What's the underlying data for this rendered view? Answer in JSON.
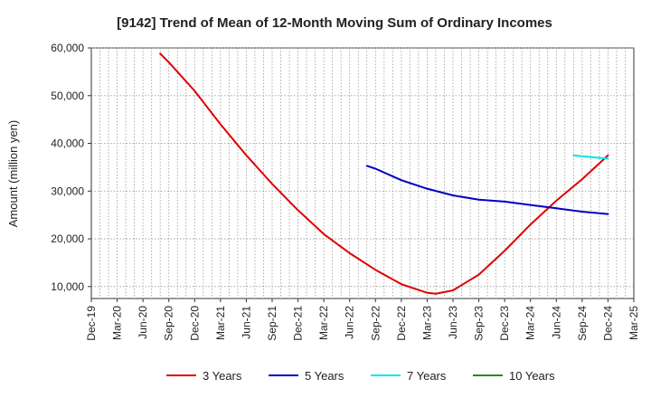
{
  "chart_data": {
    "type": "line",
    "title": "[9142]  Trend of Mean of 12-Month Moving Sum of Ordinary Incomes",
    "xlabel": "",
    "ylabel": "Amount (million yen)",
    "ylim": [
      7500,
      60000
    ],
    "grid": true,
    "yticks": [
      10000,
      20000,
      30000,
      40000,
      50000,
      60000
    ],
    "ytick_labels": [
      "10,000",
      "20,000",
      "30,000",
      "40,000",
      "50,000",
      "60,000"
    ],
    "categories": [
      "Dec-19",
      "Mar-20",
      "Jun-20",
      "Sep-20",
      "Dec-20",
      "Mar-21",
      "Jun-21",
      "Sep-21",
      "Dec-21",
      "Mar-22",
      "Jun-22",
      "Sep-22",
      "Dec-22",
      "Mar-23",
      "Jun-23",
      "Sep-23",
      "Dec-23",
      "Mar-24",
      "Jun-24",
      "Sep-24",
      "Dec-24",
      "Mar-25"
    ],
    "legend_position": "bottom",
    "series": [
      {
        "name": "3 Years",
        "color": "#e00000",
        "points": [
          {
            "x": "Aug-20",
            "y": 58800
          },
          {
            "x": "Sep-20",
            "y": 57000
          },
          {
            "x": "Dec-20",
            "y": 51000
          },
          {
            "x": "Mar-21",
            "y": 44000
          },
          {
            "x": "Jun-21",
            "y": 37500
          },
          {
            "x": "Sep-21",
            "y": 31500
          },
          {
            "x": "Dec-21",
            "y": 26000
          },
          {
            "x": "Mar-22",
            "y": 21000
          },
          {
            "x": "Jun-22",
            "y": 17000
          },
          {
            "x": "Sep-22",
            "y": 13500
          },
          {
            "x": "Dec-22",
            "y": 10500
          },
          {
            "x": "Mar-23",
            "y": 8700
          },
          {
            "x": "Apr-23",
            "y": 8500
          },
          {
            "x": "Jun-23",
            "y": 9200
          },
          {
            "x": "Sep-23",
            "y": 12500
          },
          {
            "x": "Dec-23",
            "y": 17500
          },
          {
            "x": "Mar-24",
            "y": 23000
          },
          {
            "x": "Jun-24",
            "y": 28000
          },
          {
            "x": "Sep-24",
            "y": 32500
          },
          {
            "x": "Dec-24",
            "y": 37500
          }
        ]
      },
      {
        "name": "5 Years",
        "color": "#0000c8",
        "points": [
          {
            "x": "Aug-22",
            "y": 35300
          },
          {
            "x": "Sep-22",
            "y": 34700
          },
          {
            "x": "Dec-22",
            "y": 32300
          },
          {
            "x": "Mar-23",
            "y": 30500
          },
          {
            "x": "Jun-23",
            "y": 29100
          },
          {
            "x": "Sep-23",
            "y": 28200
          },
          {
            "x": "Dec-23",
            "y": 27800
          },
          {
            "x": "Mar-24",
            "y": 27100
          },
          {
            "x": "Jun-24",
            "y": 26400
          },
          {
            "x": "Sep-24",
            "y": 25700
          },
          {
            "x": "Dec-24",
            "y": 25200
          }
        ]
      },
      {
        "name": "7 Years",
        "color": "#00e5ee",
        "points": [
          {
            "x": "Aug-24",
            "y": 37500
          },
          {
            "x": "Sep-24",
            "y": 37300
          },
          {
            "x": "Dec-24",
            "y": 36800
          }
        ]
      },
      {
        "name": "10 Years",
        "color": "#228b22",
        "points": []
      }
    ]
  }
}
